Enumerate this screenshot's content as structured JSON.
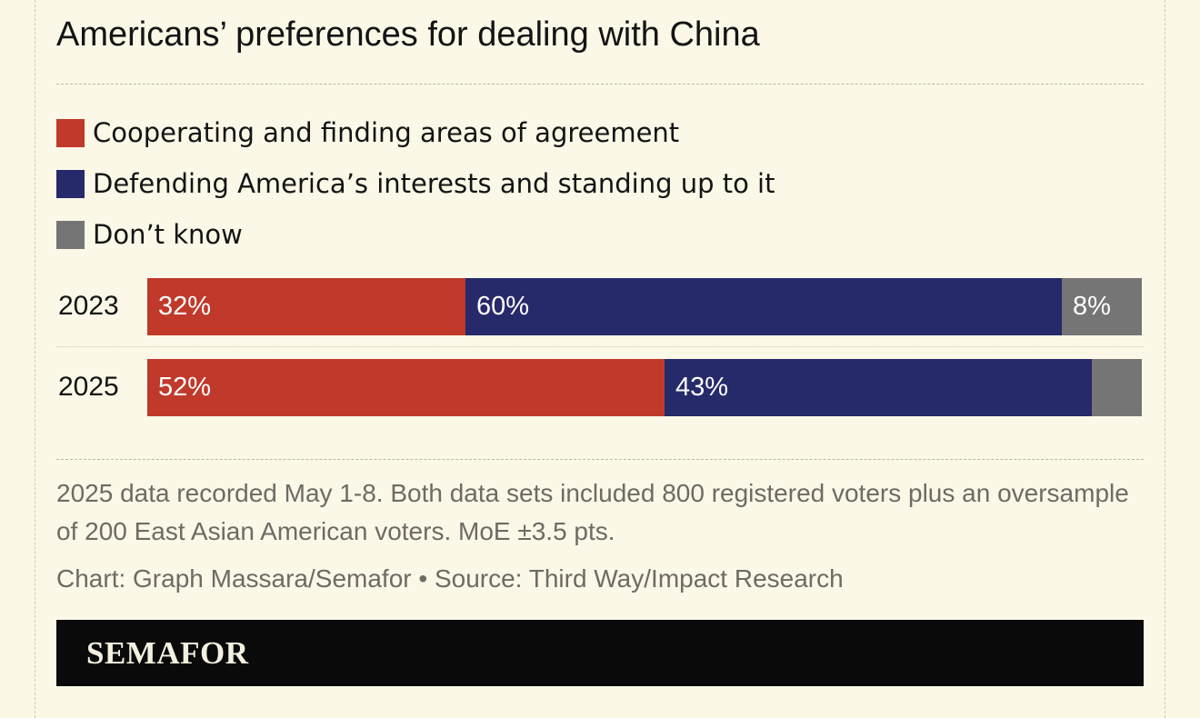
{
  "title": "Americans’ preferences for dealing with China",
  "legend": [
    {
      "label": "Cooperating and finding areas of agreement",
      "color": "#c0392b"
    },
    {
      "label": "Defending America’s interests and standing up to it",
      "color": "#262a6a"
    },
    {
      "label": "Don’t know",
      "color": "#757575"
    }
  ],
  "chart_data": {
    "type": "bar",
    "orientation": "horizontal",
    "stacked": true,
    "categories": [
      "2023",
      "2025"
    ],
    "series": [
      {
        "name": "Cooperating and finding areas of agreement",
        "values": [
          32,
          52
        ],
        "labels": [
          "32%",
          "52%"
        ],
        "color": "#c0392b"
      },
      {
        "name": "Defending America’s interests and standing up to it",
        "values": [
          60,
          43
        ],
        "labels": [
          "60%",
          "43%"
        ],
        "color": "#262a6a"
      },
      {
        "name": "Don’t know",
        "values": [
          8,
          5
        ],
        "labels": [
          "8%",
          ""
        ],
        "color": "#757575"
      }
    ],
    "xlim": [
      0,
      100
    ],
    "grid": false,
    "legend_position": "top-left"
  },
  "footnote": "2025 data recorded May 1-8. Both data sets included 800 registered voters plus an oversample of 200 East Asian American voters. MoE ±3.5 pts.",
  "source": "Chart: Graph Massara/Semafor • Source: Third Way/Impact Research",
  "brand": "SEMAFOR"
}
